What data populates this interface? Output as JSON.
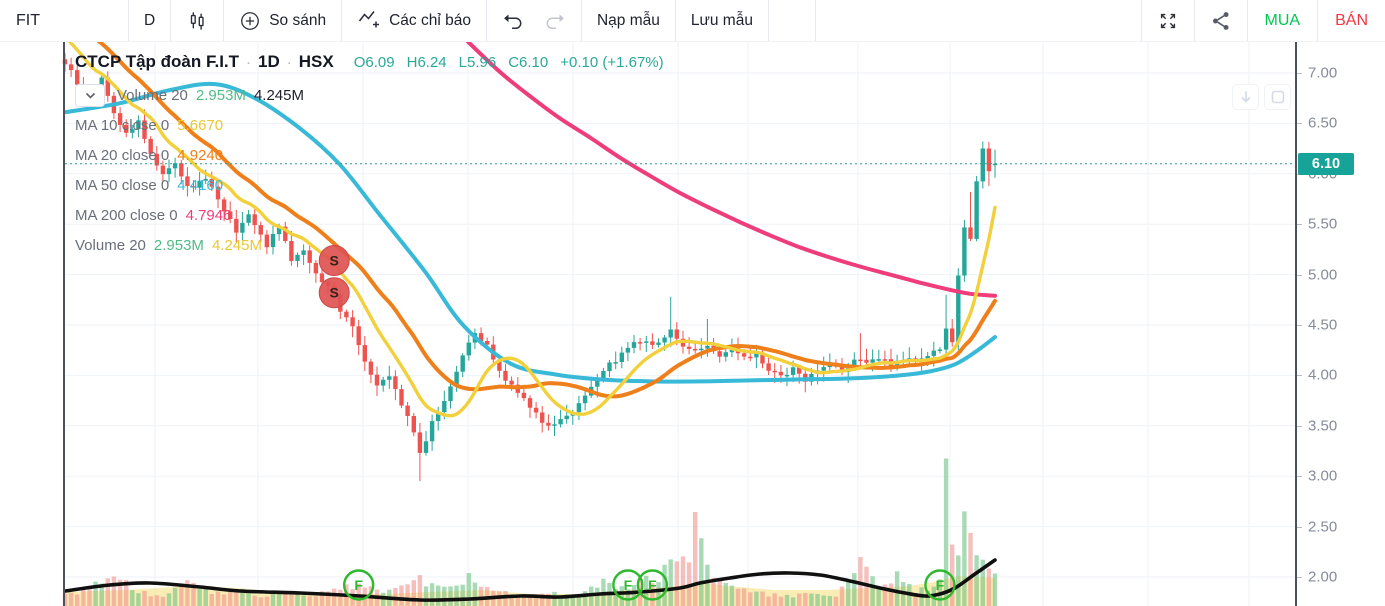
{
  "toolbar": {
    "symbol": "FIT",
    "interval": "D",
    "compare_label": "So sánh",
    "indicators_label": "Các chỉ báo",
    "load_template_label": "Nạp mẫu",
    "save_template_label": "Lưu mẫu",
    "buy_label": "MUA",
    "sell_label": "BÁN",
    "buy_color": "#00c853",
    "sell_color": "#f23645"
  },
  "legend": {
    "title": "CTCP Tập đoàn F.I.T",
    "separator": "·",
    "interval": "1D",
    "exchange": "HSX",
    "open": "O6.09",
    "high": "H6.24",
    "low": "L5.96",
    "close": "C6.10",
    "change": "+0.10 (+1.67%)",
    "rows": [
      {
        "name": "Volume 20",
        "values": [
          {
            "text": "2.953M",
            "color": "#53b987"
          },
          {
            "text": "4.245M",
            "color": "#20222c"
          }
        ]
      },
      {
        "name": "MA 10 close 0",
        "values": [
          {
            "text": "5.6670",
            "color": "#e9c832"
          }
        ]
      },
      {
        "name": "MA 20 close 0",
        "values": [
          {
            "text": "4.9240",
            "color": "#ef7f1a"
          }
        ]
      },
      {
        "name": "MA 50 close 0",
        "values": [
          {
            "text": "4.4160",
            "color": "#38b9d8"
          }
        ]
      },
      {
        "name": "MA 200 close 0",
        "values": [
          {
            "text": "4.7946",
            "color": "#ee3d7a"
          }
        ]
      },
      {
        "name": "Volume 20",
        "values": [
          {
            "text": "2.953M",
            "color": "#53b987"
          },
          {
            "text": "4.245M",
            "color": "#e9c832"
          }
        ]
      }
    ]
  },
  "price_axis": {
    "ticks": [
      "7.00",
      "6.50",
      "6.00",
      "5.50",
      "5.00",
      "4.50",
      "4.00",
      "3.50",
      "3.00",
      "2.50",
      "2.00"
    ],
    "badge_text": "6.10",
    "badge_color": "#17a398",
    "label_color": "#868b98"
  },
  "chart_data": {
    "type": "candlestick",
    "symbol": "FIT",
    "interval": "1D",
    "exchange": "HSX",
    "last_bar": {
      "open": 6.09,
      "high": 6.24,
      "low": 5.96,
      "close": 6.1,
      "change": 0.1,
      "change_pct": 1.67
    },
    "current_price": 6.1,
    "price_range_visible": [
      2.0,
      7.3
    ],
    "num_bars": 153,
    "close_path": [
      [
        0,
        7.1
      ],
      [
        2,
        6.9
      ],
      [
        4,
        6.7
      ],
      [
        6,
        6.95
      ],
      [
        8,
        6.6
      ],
      [
        10,
        6.4
      ],
      [
        12,
        6.52
      ],
      [
        14,
        6.2
      ],
      [
        16,
        6.0
      ],
      [
        18,
        6.12
      ],
      [
        20,
        5.85
      ],
      [
        23,
        5.96
      ],
      [
        26,
        5.65
      ],
      [
        28,
        5.42
      ],
      [
        30,
        5.58
      ],
      [
        33,
        5.3
      ],
      [
        35,
        5.46
      ],
      [
        37,
        5.15
      ],
      [
        39,
        5.26
      ],
      [
        41,
        5.0
      ],
      [
        43,
        4.9
      ],
      [
        45,
        4.66
      ],
      [
        47,
        4.5
      ],
      [
        49,
        4.15
      ],
      [
        51,
        3.92
      ],
      [
        53,
        4.02
      ],
      [
        55,
        3.7
      ],
      [
        57,
        3.46
      ],
      [
        58,
        3.22
      ],
      [
        60,
        3.52
      ],
      [
        62,
        3.76
      ],
      [
        64,
        4.06
      ],
      [
        66,
        4.3
      ],
      [
        67,
        4.42
      ],
      [
        69,
        4.28
      ],
      [
        71,
        4.05
      ],
      [
        73,
        3.9
      ],
      [
        75,
        3.78
      ],
      [
        77,
        3.62
      ],
      [
        79,
        3.5
      ],
      [
        81,
        3.56
      ],
      [
        83,
        3.66
      ],
      [
        85,
        3.8
      ],
      [
        87,
        3.95
      ],
      [
        89,
        4.1
      ],
      [
        91,
        4.22
      ],
      [
        93,
        4.32
      ],
      [
        95,
        4.36
      ],
      [
        97,
        4.3
      ],
      [
        99,
        4.46
      ],
      [
        100,
        4.36
      ],
      [
        101,
        4.3
      ],
      [
        103,
        4.24
      ],
      [
        105,
        4.32
      ],
      [
        107,
        4.18
      ],
      [
        109,
        4.26
      ],
      [
        111,
        4.16
      ],
      [
        113,
        4.22
      ],
      [
        115,
        4.06
      ],
      [
        117,
        3.98
      ],
      [
        119,
        4.06
      ],
      [
        121,
        3.96
      ],
      [
        123,
        4.04
      ],
      [
        125,
        4.12
      ],
      [
        127,
        4.06
      ],
      [
        129,
        4.16
      ],
      [
        131,
        4.1
      ],
      [
        133,
        4.18
      ],
      [
        135,
        4.12
      ],
      [
        137,
        4.16
      ],
      [
        139,
        4.12
      ],
      [
        141,
        4.18
      ],
      [
        143,
        4.26
      ],
      [
        144,
        4.46
      ],
      [
        145,
        4.32
      ],
      [
        146,
        5.0
      ],
      [
        147,
        5.46
      ],
      [
        148,
        5.36
      ],
      [
        149,
        5.92
      ],
      [
        150,
        6.26
      ],
      [
        151,
        6.02
      ],
      [
        152,
        6.1
      ]
    ],
    "wick_overrides": {
      "58": {
        "low": 2.95
      },
      "99": {
        "high": 4.78
      },
      "105": {
        "high": 4.56
      },
      "130": {
        "high": 4.42
      },
      "144": {
        "high": 4.8
      },
      "148": {
        "high": 5.82
      },
      "150": {
        "high": 6.32
      },
      "151": {
        "low": 5.88
      },
      "152": {
        "open": 6.09,
        "high": 6.24,
        "low": 5.96,
        "close": 6.1
      }
    },
    "volume_path": [
      [
        0,
        12
      ],
      [
        4,
        16
      ],
      [
        8,
        34
      ],
      [
        12,
        14
      ],
      [
        16,
        10
      ],
      [
        20,
        30
      ],
      [
        24,
        12
      ],
      [
        28,
        16
      ],
      [
        32,
        10
      ],
      [
        36,
        14
      ],
      [
        40,
        10
      ],
      [
        44,
        18
      ],
      [
        48,
        22
      ],
      [
        52,
        16
      ],
      [
        56,
        20
      ],
      [
        58,
        26
      ],
      [
        60,
        22
      ],
      [
        62,
        18
      ],
      [
        64,
        24
      ],
      [
        66,
        28
      ],
      [
        68,
        20
      ],
      [
        72,
        14
      ],
      [
        76,
        10
      ],
      [
        80,
        12
      ],
      [
        84,
        10
      ],
      [
        88,
        24
      ],
      [
        92,
        16
      ],
      [
        95,
        30
      ],
      [
        97,
        26
      ],
      [
        98,
        42
      ],
      [
        100,
        38
      ],
      [
        102,
        50
      ],
      [
        103,
        88
      ],
      [
        104,
        82
      ],
      [
        105,
        40
      ],
      [
        107,
        22
      ],
      [
        110,
        16
      ],
      [
        114,
        12
      ],
      [
        118,
        10
      ],
      [
        122,
        12
      ],
      [
        126,
        10
      ],
      [
        130,
        48
      ],
      [
        133,
        20
      ],
      [
        136,
        30
      ],
      [
        139,
        14
      ],
      [
        141,
        18
      ],
      [
        143,
        24
      ],
      [
        144,
        139
      ],
      [
        145,
        60
      ],
      [
        146,
        62
      ],
      [
        147,
        80
      ],
      [
        148,
        85
      ],
      [
        149,
        52
      ],
      [
        150,
        46
      ],
      [
        151,
        38
      ],
      [
        152,
        30
      ]
    ],
    "volume_ma_area": [
      [
        0,
        14
      ],
      [
        10,
        16
      ],
      [
        20,
        20
      ],
      [
        28,
        18
      ],
      [
        36,
        14
      ],
      [
        44,
        12
      ],
      [
        52,
        12
      ],
      [
        60,
        14
      ],
      [
        68,
        16
      ],
      [
        76,
        12
      ],
      [
        84,
        12
      ],
      [
        92,
        16
      ],
      [
        100,
        20
      ],
      [
        104,
        24
      ],
      [
        108,
        20
      ],
      [
        116,
        16
      ],
      [
        124,
        16
      ],
      [
        132,
        18
      ],
      [
        138,
        20
      ],
      [
        142,
        24
      ],
      [
        146,
        30
      ],
      [
        152,
        28
      ]
    ],
    "ma_lines": {
      "ma10": {
        "period": 10,
        "source": "close",
        "offset": 0,
        "last_value": 5.667,
        "computed": true
      },
      "ma20": {
        "period": 20,
        "source": "close",
        "offset": 0,
        "last_value": 4.924,
        "computed": true
      },
      "ma50": {
        "period": 50,
        "source": "close",
        "offset": 0,
        "last_value": 4.416,
        "path_price": [
          [
            65,
            6.61
          ],
          [
            120,
            6.7
          ],
          [
            170,
            6.83
          ],
          [
            215,
            6.89
          ],
          [
            255,
            6.75
          ],
          [
            300,
            6.45
          ],
          [
            340,
            6.09
          ],
          [
            380,
            5.59
          ],
          [
            425,
            5.03
          ],
          [
            463,
            4.5
          ],
          [
            510,
            4.12
          ],
          [
            555,
            4.01
          ],
          [
            600,
            3.96
          ],
          [
            650,
            3.94
          ],
          [
            700,
            3.94
          ],
          [
            750,
            3.95
          ],
          [
            800,
            3.96
          ],
          [
            850,
            3.97
          ],
          [
            900,
            4.0
          ],
          [
            930,
            4.04
          ],
          [
            955,
            4.11
          ],
          [
            975,
            4.23
          ],
          [
            995,
            4.38
          ]
        ]
      },
      "ma200": {
        "period": 200,
        "source": "close",
        "offset": 0,
        "last_value": 4.7946,
        "path_price": [
          [
            468,
            7.31
          ],
          [
            500,
            7.01
          ],
          [
            530,
            6.77
          ],
          [
            560,
            6.55
          ],
          [
            590,
            6.36
          ],
          [
            620,
            6.16
          ],
          [
            650,
            5.98
          ],
          [
            680,
            5.81
          ],
          [
            710,
            5.66
          ],
          [
            740,
            5.52
          ],
          [
            770,
            5.39
          ],
          [
            800,
            5.27
          ],
          [
            830,
            5.17
          ],
          [
            860,
            5.08
          ],
          [
            890,
            5.0
          ],
          [
            920,
            4.92
          ],
          [
            945,
            4.86
          ],
          [
            970,
            4.81
          ],
          [
            995,
            4.79
          ]
        ]
      }
    },
    "overlay_line_heights": [
      [
        65,
        15
      ],
      [
        110,
        21
      ],
      [
        150,
        23
      ],
      [
        200,
        19
      ],
      [
        240,
        15
      ],
      [
        300,
        13
      ],
      [
        360,
        10
      ],
      [
        420,
        6
      ],
      [
        470,
        7
      ],
      [
        520,
        10
      ],
      [
        560,
        9
      ],
      [
        600,
        12
      ],
      [
        640,
        14
      ],
      [
        680,
        18
      ],
      [
        700,
        23
      ],
      [
        730,
        28
      ],
      [
        760,
        32
      ],
      [
        790,
        33
      ],
      [
        820,
        31
      ],
      [
        850,
        25
      ],
      [
        880,
        18
      ],
      [
        905,
        13
      ],
      [
        925,
        10
      ],
      [
        940,
        12
      ],
      [
        955,
        18
      ],
      [
        975,
        32
      ],
      [
        995,
        46
      ]
    ],
    "sell_markers": [
      {
        "bar": 44,
        "price": 5.14,
        "label": "S"
      },
      {
        "bar": 44,
        "price": 4.82,
        "label": "S"
      }
    ],
    "f_markers": [
      {
        "bar": 48,
        "label": "F"
      },
      {
        "bar": 92,
        "label": "F"
      },
      {
        "bar": 96,
        "label": "F"
      },
      {
        "bar": 143,
        "label": "F"
      }
    ],
    "colors": {
      "up": "#26a69a",
      "down": "#ef5350",
      "ma10": "#f2d03b",
      "ma20": "#ef7f1a",
      "ma50": "#38b9d8",
      "ma200": "#ee3d7a",
      "current_price_line": "#2a9d8f",
      "volume_up": "#6fc185",
      "volume_down": "#f0958f",
      "volume_ma_fill": "#f3da6b",
      "overlay_line": "#101010",
      "sell_marker": "#e05252",
      "f_marker": "#2eb82e",
      "grid": "#eff2f7"
    }
  }
}
